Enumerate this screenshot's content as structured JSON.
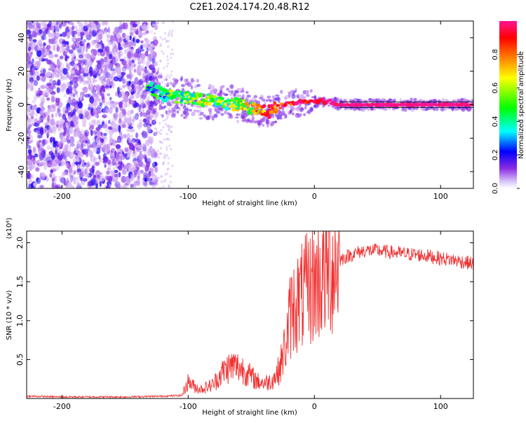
{
  "title": "C2E1.2024.174.20.48.R12",
  "chart_data": [
    {
      "type": "heatmap",
      "xlabel": "Height of straight line (km)",
      "ylabel": "Frequency (Hz)",
      "xlim": [
        -228,
        126
      ],
      "ylim": [
        -50,
        50
      ],
      "xticks": [
        -200,
        -100,
        0,
        100
      ],
      "xtick_labels": [
        "-200",
        "-100",
        "0",
        "100"
      ],
      "yticks": [
        -40,
        -20,
        0,
        20,
        40
      ],
      "ytick_labels": [
        "-40",
        "-20",
        "0",
        "20",
        "40"
      ],
      "colorbar": {
        "label": "Normalized spectral amplitude",
        "range": [
          0,
          1
        ],
        "ticks": [
          0.0,
          0.2,
          0.4,
          0.6,
          0.8
        ],
        "tick_labels": [
          "0.0",
          "0.2",
          "0.4",
          "0.6",
          "0.8"
        ],
        "colors": [
          "#ffffff",
          "#8a2be2",
          "#0000ff",
          "#00ffff",
          "#00ff00",
          "#ffff00",
          "#ff8000",
          "#ff0000",
          "#ff1493"
        ]
      },
      "ridge": {
        "x": [
          -130,
          -120,
          -110,
          -100,
          -90,
          -80,
          -70,
          -60,
          -50,
          -45,
          -40,
          -35,
          -30,
          -25,
          -20,
          -10,
          0,
          10,
          20,
          40,
          60,
          80,
          100,
          126
        ],
        "y": [
          10,
          6,
          5,
          4,
          3,
          2,
          1,
          0,
          -2,
          -3,
          -4,
          -4,
          -2,
          0,
          1,
          1,
          2,
          2,
          0,
          0,
          0,
          0,
          0,
          0
        ],
        "amplitude": [
          0.35,
          0.45,
          0.5,
          0.5,
          0.5,
          0.5,
          0.5,
          0.55,
          0.6,
          0.7,
          0.8,
          0.85,
          0.8,
          0.85,
          0.9,
          0.95,
          0.95,
          0.95,
          1.0,
          1.0,
          1.0,
          1.0,
          1.0,
          1.0
        ]
      },
      "noise_region_x": [
        -228,
        -125
      ]
    },
    {
      "type": "line",
      "xlabel": "Height of straight line (km)",
      "ylabel": "SNR (10 * v/v)",
      "y_multiplier": "(x10⁴)",
      "xlim": [
        -228,
        126
      ],
      "ylim": [
        0.0,
        2.15
      ],
      "xticks": [
        -200,
        -100,
        0,
        100
      ],
      "xtick_labels": [
        "-200",
        "-100",
        "0",
        "100"
      ],
      "yticks": [
        0.5,
        1.0,
        1.5,
        2.0
      ],
      "ytick_labels": [
        "0.5",
        "1.0",
        "1.5",
        "2.0"
      ],
      "color": "#f03030",
      "series": [
        {
          "x": [
            -228,
            -200,
            -150,
            -120,
            -105,
            -100,
            -95,
            -90,
            -80,
            -75,
            -70,
            -65,
            -60,
            -55,
            -50,
            -45,
            -40,
            -35,
            -30,
            -27,
            -25,
            -22,
            -20,
            -18,
            -15,
            -10,
            -5,
            0,
            5,
            10,
            15,
            20,
            25,
            30,
            35,
            40,
            50,
            60,
            70,
            80,
            90,
            100,
            110,
            120,
            126
          ],
          "y": [
            0.03,
            0.02,
            0.02,
            0.03,
            0.04,
            0.22,
            0.15,
            0.12,
            0.18,
            0.3,
            0.38,
            0.42,
            0.4,
            0.36,
            0.28,
            0.22,
            0.2,
            0.22,
            0.3,
            0.42,
            0.55,
            0.75,
            1.0,
            1.12,
            1.22,
            1.3,
            1.4,
            1.48,
            1.55,
            1.62,
            1.7,
            1.78,
            1.82,
            1.85,
            1.88,
            1.9,
            1.9,
            1.88,
            1.86,
            1.85,
            1.83,
            1.8,
            1.78,
            1.75,
            1.73
          ]
        }
      ]
    }
  ]
}
